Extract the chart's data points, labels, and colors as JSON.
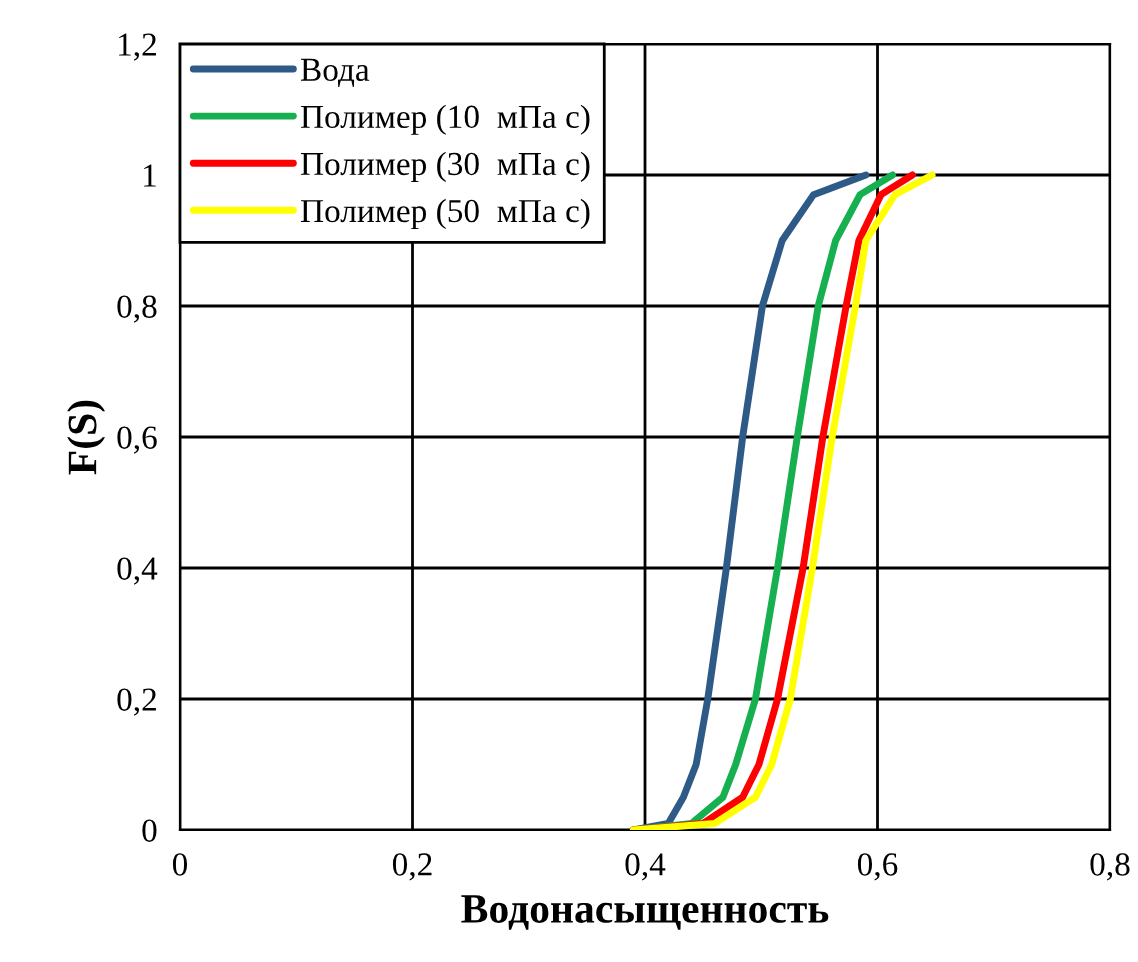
{
  "chart_data": {
    "type": "line",
    "xlabel": "Водонасыщенность",
    "ylabel": "F(S)",
    "xlim": [
      0,
      0.8
    ],
    "xticks": [
      {
        "value": 0,
        "label": "0"
      },
      {
        "value": 0.2,
        "label": "0,2"
      },
      {
        "value": 0.4,
        "label": "0,4"
      },
      {
        "value": 0.6,
        "label": "0,6"
      },
      {
        "value": 0.8,
        "label": "0,8"
      }
    ],
    "ylim": [
      0,
      1.2
    ],
    "yticks": [
      {
        "value": 0,
        "label": "0"
      },
      {
        "value": 0.2,
        "label": "0,2"
      },
      {
        "value": 0.4,
        "label": "0,4"
      },
      {
        "value": 0.6,
        "label": "0,6"
      },
      {
        "value": 0.8,
        "label": "0,8"
      },
      {
        "value": 1,
        "label": "1"
      },
      {
        "value": 1.2,
        "label": "1,2"
      }
    ],
    "grid": true,
    "legend": "top left",
    "marker": "none",
    "line_style": "solid",
    "series": [
      {
        "name": "Вода",
        "color": "#2e5a88",
        "x": [
          0.39,
          0.42,
          0.433,
          0.444,
          0.454,
          0.47,
          0.484,
          0.501,
          0.518,
          0.545,
          0.59
        ],
        "values": [
          0,
          0.01,
          0.05,
          0.1,
          0.2,
          0.4,
          0.6,
          0.8,
          0.9,
          0.97,
          1
        ]
      },
      {
        "name": "Полимер (10  мПа с)",
        "color": "#16b050",
        "x": [
          0.39,
          0.44,
          0.467,
          0.478,
          0.495,
          0.514,
          0.531,
          0.549,
          0.564,
          0.585,
          0.613
        ],
        "values": [
          0,
          0.01,
          0.05,
          0.1,
          0.2,
          0.4,
          0.6,
          0.8,
          0.9,
          0.97,
          1
        ]
      },
      {
        "name": "Полимер (30  мПа с)",
        "color": "#ff0000",
        "x": [
          0.39,
          0.45,
          0.484,
          0.498,
          0.514,
          0.536,
          0.553,
          0.573,
          0.584,
          0.603,
          0.63
        ],
        "values": [
          0,
          0.01,
          0.05,
          0.1,
          0.2,
          0.4,
          0.6,
          0.8,
          0.9,
          0.97,
          1
        ]
      },
      {
        "name": "Полимер (50  мПа с)",
        "color": "#ffff00",
        "x": [
          0.39,
          0.46,
          0.495,
          0.509,
          0.525,
          0.544,
          0.561,
          0.581,
          0.59,
          0.615,
          0.647
        ],
        "values": [
          0,
          0.01,
          0.05,
          0.1,
          0.2,
          0.4,
          0.6,
          0.8,
          0.9,
          0.97,
          1
        ]
      }
    ]
  }
}
